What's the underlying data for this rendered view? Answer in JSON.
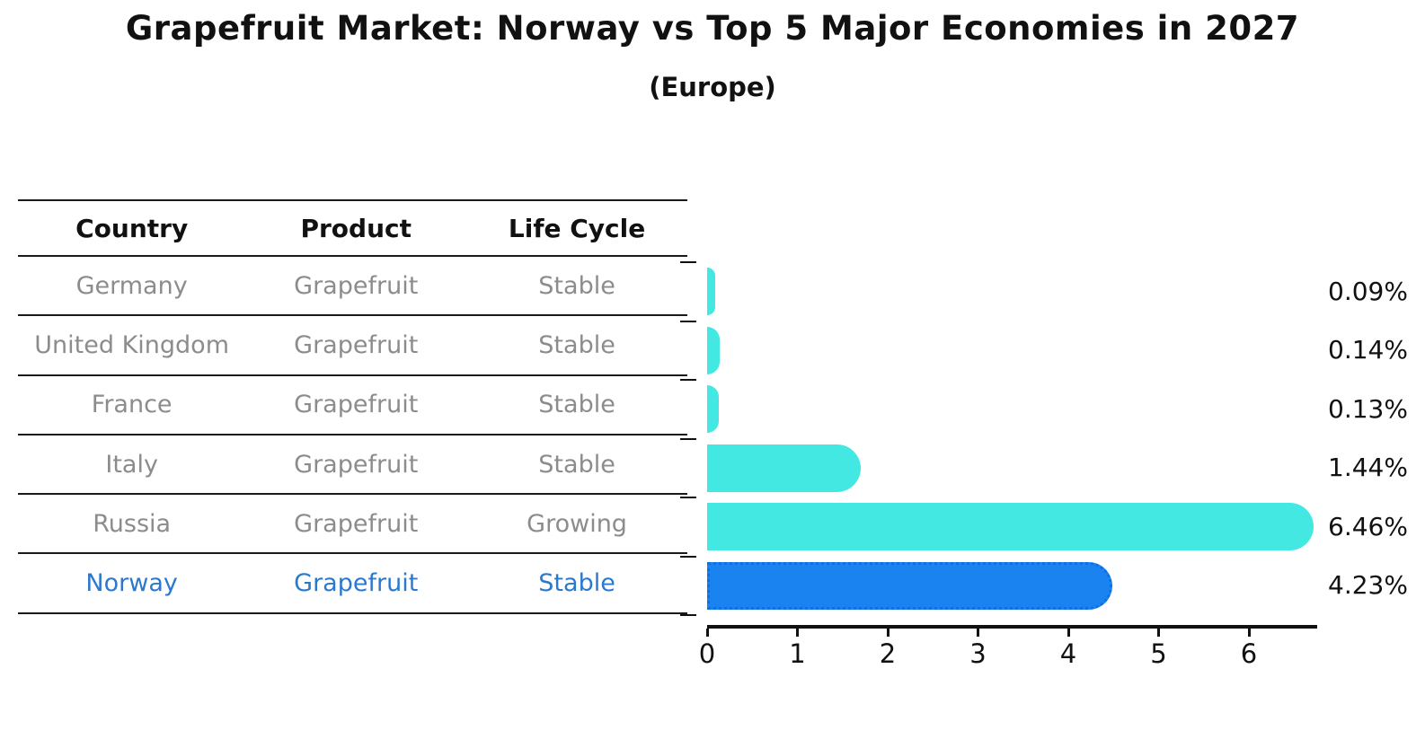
{
  "title": "Grapefruit Market: Norway vs Top 5 Major Economies in 2027",
  "subtitle": "(Europe)",
  "table": {
    "headers": [
      "Country",
      "Product",
      "Life Cycle"
    ],
    "rows": [
      {
        "country": "Germany",
        "product": "Grapefruit",
        "life_cycle": "Stable",
        "highlight": false
      },
      {
        "country": "United Kingdom",
        "product": "Grapefruit",
        "life_cycle": "Stable",
        "highlight": false
      },
      {
        "country": "France",
        "product": "Grapefruit",
        "life_cycle": "Stable",
        "highlight": false
      },
      {
        "country": "Italy",
        "product": "Grapefruit",
        "life_cycle": "Stable",
        "highlight": false
      },
      {
        "country": "Russia",
        "product": "Grapefruit",
        "life_cycle": "Growing",
        "highlight": false
      },
      {
        "country": "Norway",
        "product": "Grapefruit",
        "life_cycle": "Stable",
        "highlight": true
      }
    ]
  },
  "chart_data": {
    "type": "bar",
    "orientation": "horizontal",
    "title": "Grapefruit Market: Norway vs Top 5 Major Economies in 2027",
    "subtitle": "(Europe)",
    "categories": [
      "Germany",
      "United Kingdom",
      "France",
      "Italy",
      "Russia",
      "Norway"
    ],
    "values": [
      0.09,
      0.14,
      0.13,
      1.44,
      6.46,
      4.23
    ],
    "value_labels": [
      "0.09%",
      "0.14%",
      "0.13%",
      "1.44%",
      "6.46%",
      "4.23%"
    ],
    "x_ticks": [
      "0",
      "1",
      "2",
      "3",
      "4",
      "5",
      "6"
    ],
    "xlim": [
      0,
      6.76
    ],
    "highlight_index": 5,
    "grid": false,
    "legend": "none"
  },
  "colors": {
    "bar": "#43E8E3",
    "highlight_bar": "#1B83F0",
    "highlight_border": "#0E6FE4",
    "highlight_text": "#2B79CE",
    "row_text": "#8C8C8C",
    "header_text": "#111111",
    "axis": "#111111"
  }
}
